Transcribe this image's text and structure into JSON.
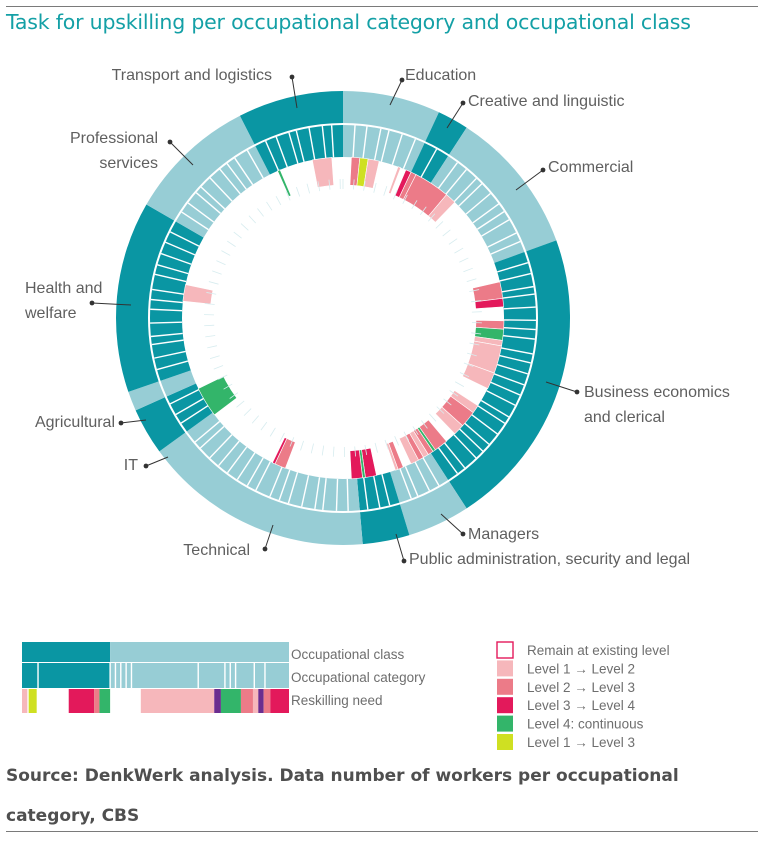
{
  "title": "Task for upskilling per occupational category and occupational class",
  "source_line1": "Source: DenkWerk analysis. Data number of workers per occupational",
  "source_line2": "category, CBS",
  "colors": {
    "dark_teal": "#0a96a3",
    "light_teal": "#97cdd5",
    "remain": "#ffffff",
    "level1_2": "#f6b7bb",
    "level2_3": "#ec7b88",
    "level3_4": "#e3195b",
    "level4_cont": "#33b56a",
    "level1_3": "#cfe022",
    "purple": "#6b2d8f"
  },
  "chart_data": {
    "type": "radial_segments",
    "title": "Task for upskilling per occupational category and occupational class",
    "ring_labels": [
      "Occupational class",
      "Occupational category",
      "Reskilling need"
    ],
    "classes": [
      {
        "name": "Education",
        "label_lines": [
          "Education"
        ],
        "start": 0,
        "end": 25,
        "tone": "light"
      },
      {
        "name": "Creative and linguistic",
        "label_lines": [
          "Creative and linguistic"
        ],
        "start": 25,
        "end": 33,
        "tone": "dark"
      },
      {
        "name": "Commercial",
        "label_lines": [
          "Commercial"
        ],
        "start": 33,
        "end": 70,
        "tone": "light"
      },
      {
        "name": "Business economics and clerical",
        "label_lines": [
          "Business economics",
          "and  clerical"
        ],
        "start": 70,
        "end": 147,
        "tone": "dark"
      },
      {
        "name": "Managers",
        "label_lines": [
          "Managers"
        ],
        "start": 147,
        "end": 163,
        "tone": "light"
      },
      {
        "name": "Public administration, security and legal",
        "label_lines": [
          "Public administration, security and legal"
        ],
        "start": 163,
        "end": 175,
        "tone": "dark"
      },
      {
        "name": "Technical",
        "label_lines": [
          "Technical"
        ],
        "start": 175,
        "end": 234,
        "tone": "light"
      },
      {
        "name": "IT",
        "label_lines": [
          "IT"
        ],
        "start": 234,
        "end": 246,
        "tone": "dark"
      },
      {
        "name": "Agricultural",
        "label_lines": [
          "Agricultural"
        ],
        "start": 246,
        "end": 251,
        "tone": "light"
      },
      {
        "name": "Health and welfare",
        "label_lines": [
          "Health and",
          "welfare"
        ],
        "start": 251,
        "end": 300,
        "tone": "dark"
      },
      {
        "name": "Professional services",
        "label_lines": [
          "Professional",
          "services"
        ],
        "start": 300,
        "end": 333,
        "tone": "light"
      },
      {
        "name": "Transport and logistics",
        "label_lines": [
          "Transport and logistics"
        ],
        "start": 333,
        "end": 360,
        "tone": "dark"
      }
    ],
    "reskilling_arcs": [
      {
        "start": 3,
        "end": 6,
        "level": "level2_3"
      },
      {
        "start": 6,
        "end": 9,
        "level": "level1_3"
      },
      {
        "start": 9,
        "end": 13,
        "level": "level1_2"
      },
      {
        "start": 20,
        "end": 21,
        "level": "level1_2"
      },
      {
        "start": 23,
        "end": 25,
        "level": "level3_4"
      },
      {
        "start": 25,
        "end": 27,
        "level": "level2_3"
      },
      {
        "start": 27,
        "end": 40,
        "level": "level2_3"
      },
      {
        "start": 40,
        "end": 44,
        "level": "level1_2"
      },
      {
        "start": 77,
        "end": 83,
        "level": "level2_3"
      },
      {
        "start": 83,
        "end": 86,
        "level": "level3_4"
      },
      {
        "start": 91,
        "end": 94,
        "level": "level2_3"
      },
      {
        "start": 94,
        "end": 98,
        "level": "level4_cont"
      },
      {
        "start": 98,
        "end": 100,
        "level": "level1_2"
      },
      {
        "start": 100,
        "end": 110,
        "level": "level1_2"
      },
      {
        "start": 110,
        "end": 116,
        "level": "level1_2"
      },
      {
        "start": 123,
        "end": 126,
        "level": "level1_2"
      },
      {
        "start": 126,
        "end": 132,
        "level": "level2_3"
      },
      {
        "start": 132,
        "end": 136,
        "level": "level1_2"
      },
      {
        "start": 140,
        "end": 145,
        "level": "level2_3"
      },
      {
        "start": 145,
        "end": 146,
        "level": "level4_cont"
      },
      {
        "start": 146,
        "end": 148,
        "level": "level2_3"
      },
      {
        "start": 148,
        "end": 150,
        "level": "level1_2"
      },
      {
        "start": 150,
        "end": 152,
        "level": "level2_3"
      },
      {
        "start": 152,
        "end": 155,
        "level": "level1_2"
      },
      {
        "start": 158,
        "end": 160,
        "level": "level2_3"
      },
      {
        "start": 160,
        "end": 161,
        "level": "level1_2"
      },
      {
        "start": 168,
        "end": 172,
        "level": "level3_4"
      },
      {
        "start": 172,
        "end": 173,
        "level": "level4_cont"
      },
      {
        "start": 173,
        "end": 177,
        "level": "level3_4"
      },
      {
        "start": 201,
        "end": 205,
        "level": "level2_3"
      },
      {
        "start": 205,
        "end": 206,
        "level": "level3_4"
      },
      {
        "start": 233,
        "end": 244,
        "level": "level4_cont"
      },
      {
        "start": 276,
        "end": 282,
        "level": "level1_2"
      },
      {
        "start": 336,
        "end": 337,
        "level": "level4_cont"
      },
      {
        "start": 349,
        "end": 356,
        "level": "level1_2"
      }
    ],
    "legend_sample": {
      "class_blocks": [
        {
          "tone": "dark",
          "share": 0.33
        },
        {
          "tone": "light",
          "share": 0.67
        }
      ],
      "category_dividers": [
        0.06,
        0.33,
        0.35,
        0.37,
        0.39,
        0.41,
        0.66,
        0.76,
        0.78,
        0.8,
        0.87,
        0.91
      ],
      "reskilling": [
        {
          "start": 0.0,
          "end": 0.02,
          "level": "level1_2"
        },
        {
          "start": 0.025,
          "end": 0.055,
          "level": "level1_3"
        },
        {
          "start": 0.175,
          "end": 0.27,
          "level": "level3_4"
        },
        {
          "start": 0.27,
          "end": 0.29,
          "level": "level2_3"
        },
        {
          "start": 0.29,
          "end": 0.33,
          "level": "level4_cont"
        },
        {
          "start": 0.445,
          "end": 0.72,
          "level": "level1_2"
        },
        {
          "start": 0.72,
          "end": 0.745,
          "level": "purple"
        },
        {
          "start": 0.745,
          "end": 0.82,
          "level": "level4_cont"
        },
        {
          "start": 0.82,
          "end": 0.865,
          "level": "level2_3"
        },
        {
          "start": 0.865,
          "end": 0.885,
          "level": "level1_2"
        },
        {
          "start": 0.885,
          "end": 0.905,
          "level": "purple"
        },
        {
          "start": 0.905,
          "end": 0.93,
          "level": "level2_3"
        },
        {
          "start": 0.93,
          "end": 1.0,
          "level": "level3_4"
        }
      ]
    },
    "legend": [
      {
        "key": "remain",
        "label": "Remain at existing level"
      },
      {
        "key": "level1_2",
        "label": "Level 1 → Level 2"
      },
      {
        "key": "level2_3",
        "label": "Level 2 → Level 3"
      },
      {
        "key": "level3_4",
        "label": "Level 3 → Level 4"
      },
      {
        "key": "level4_cont",
        "label": "Level 4: continuous"
      },
      {
        "key": "level1_3",
        "label": "Level 1 → Level 3"
      }
    ]
  }
}
